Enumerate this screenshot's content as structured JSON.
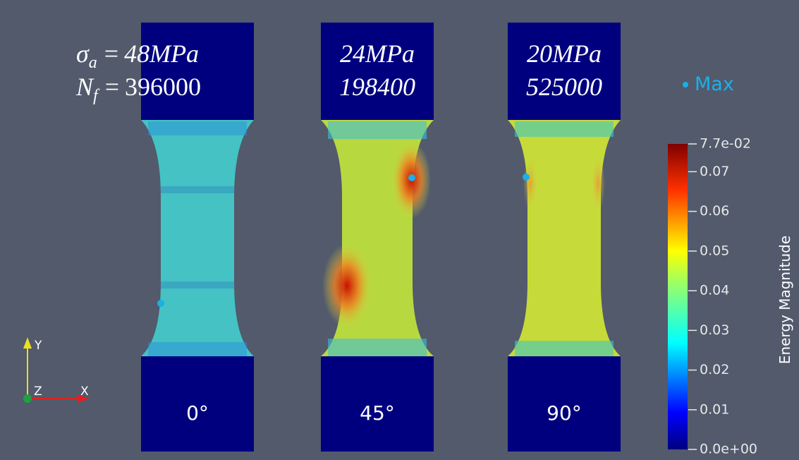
{
  "specimens": [
    {
      "stress": "48MPa",
      "cycles": "396000",
      "angle": "0°"
    },
    {
      "stress": "24MPa",
      "cycles": "198400",
      "angle": "45°"
    },
    {
      "stress": "20MPa",
      "cycles": "525000",
      "angle": "90°"
    }
  ],
  "symbols": {
    "stress": "σ",
    "stress_sub": "a",
    "cycles": "N",
    "cycles_sub": "f",
    "equals": "="
  },
  "legend": {
    "label": "Max"
  },
  "axes": {
    "x": "X",
    "y": "Y",
    "z": "Z"
  },
  "colorbar": {
    "title": "Energy Magnitude",
    "ticks": [
      {
        "value": 0.077,
        "label": "7.7e-02"
      },
      0.07,
      0.06,
      0.05,
      0.04,
      0.03,
      0.02,
      0.01,
      {
        "value": 0,
        "label": "0.0e+00"
      }
    ],
    "range": [
      0,
      0.077
    ]
  }
}
